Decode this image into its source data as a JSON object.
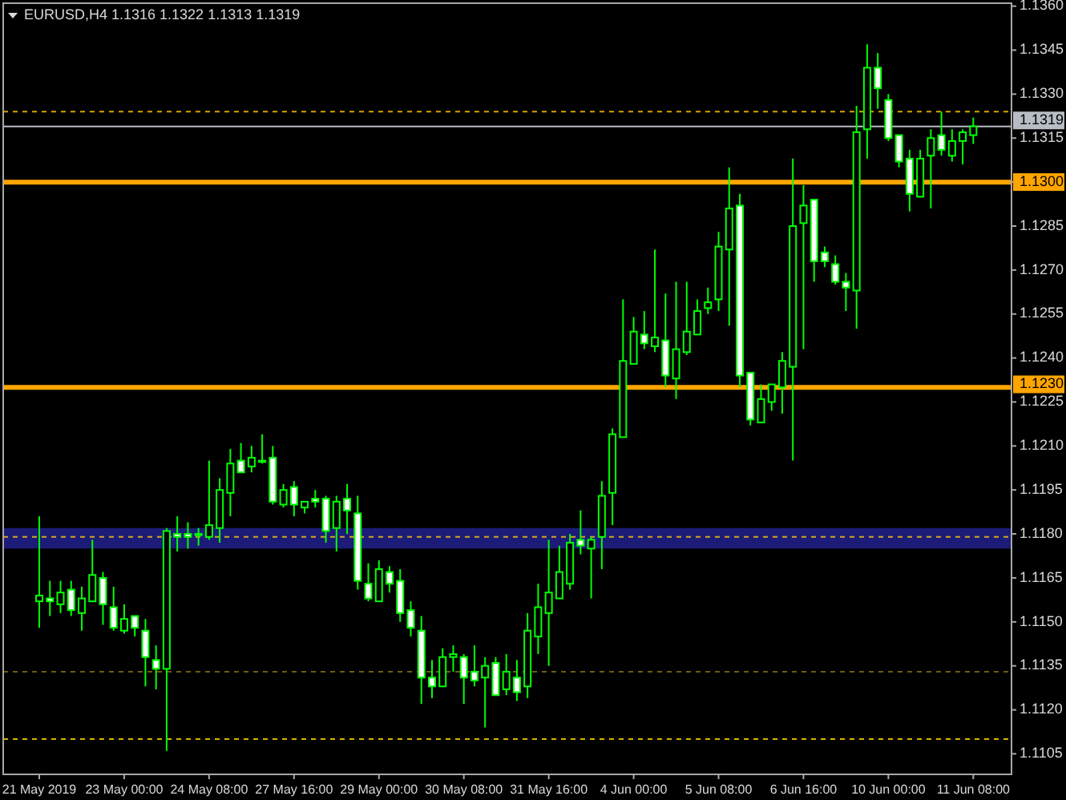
{
  "chart_data": {
    "type": "candlestick",
    "title": "EURUSD,H4 1.1316 1.1322 1.1313 1.1319",
    "categories": [
      "21 May 2019",
      null,
      null,
      null,
      null,
      null,
      null,
      null,
      "23 May 00:00",
      null,
      null,
      null,
      null,
      null,
      null,
      null,
      "24 May 08:00",
      null,
      null,
      null,
      null,
      null,
      null,
      null,
      "27 May 16:00",
      null,
      null,
      null,
      null,
      null,
      null,
      null,
      "29 May 00:00",
      null,
      null,
      null,
      null,
      null,
      null,
      null,
      "30 May 08:00",
      null,
      null,
      null,
      null,
      null,
      null,
      null,
      "31 May 16:00",
      null,
      null,
      null,
      null,
      null,
      null,
      null,
      "4 Jun 00:00",
      null,
      null,
      null,
      null,
      null,
      null,
      null,
      "5 Jun 08:00",
      null,
      null,
      null,
      null,
      null,
      null,
      null,
      "6 Jun 16:00",
      null,
      null,
      null,
      null,
      null,
      null,
      null,
      "10 Jun 00:00",
      null,
      null,
      null,
      null,
      null,
      null,
      null,
      "11 Jun 08:00"
    ],
    "ohlc": [
      [
        1.1157,
        1.1186,
        1.1148,
        1.1159
      ],
      [
        1.1158,
        1.1164,
        1.1152,
        1.1157
      ],
      [
        1.1156,
        1.1164,
        1.1153,
        1.116
      ],
      [
        1.1161,
        1.1164,
        1.1152,
        1.1154
      ],
      [
        1.1153,
        1.1162,
        1.1147,
        1.1158
      ],
      [
        1.1157,
        1.1178,
        1.1157,
        1.1166
      ],
      [
        1.1165,
        1.1167,
        1.1149,
        1.1156
      ],
      [
        1.1155,
        1.1162,
        1.1147,
        1.1148
      ],
      [
        1.1147,
        1.1156,
        1.1146,
        1.1151
      ],
      [
        1.1152,
        1.1152,
        1.1145,
        1.1148
      ],
      [
        1.1147,
        1.1151,
        1.1128,
        1.1138
      ],
      [
        1.1137,
        1.1142,
        1.1127,
        1.1134
      ],
      [
        1.1134,
        1.1182,
        1.1106,
        1.1181
      ],
      [
        1.118,
        1.1186,
        1.1174,
        1.1179
      ],
      [
        1.118,
        1.1184,
        1.1175,
        1.1179
      ],
      [
        1.118,
        1.1182,
        1.1176,
        1.118
      ],
      [
        1.1179,
        1.1205,
        1.1178,
        1.1183
      ],
      [
        1.1182,
        1.1199,
        1.1177,
        1.1195
      ],
      [
        1.1194,
        1.1209,
        1.1186,
        1.1204
      ],
      [
        1.1205,
        1.1211,
        1.1201,
        1.1201
      ],
      [
        1.1203,
        1.121,
        1.1201,
        1.1206
      ],
      [
        1.1205,
        1.1214,
        1.1204,
        1.1205
      ],
      [
        1.1206,
        1.121,
        1.119,
        1.1191
      ],
      [
        1.119,
        1.1197,
        1.1189,
        1.1195
      ],
      [
        1.1196,
        1.1198,
        1.1186,
        1.119
      ],
      [
        1.1189,
        1.1191,
        1.1187,
        1.1191
      ],
      [
        1.1192,
        1.1195,
        1.1189,
        1.1191
      ],
      [
        1.1192,
        1.1193,
        1.1177,
        1.1181
      ],
      [
        1.1182,
        1.1193,
        1.1174,
        1.1191
      ],
      [
        1.1192,
        1.1197,
        1.118,
        1.1188
      ],
      [
        1.1187,
        1.1193,
        1.1161,
        1.1164
      ],
      [
        1.1163,
        1.117,
        1.1157,
        1.1158
      ],
      [
        1.1157,
        1.1171,
        1.1157,
        1.1168
      ],
      [
        1.1167,
        1.1169,
        1.116,
        1.1163
      ],
      [
        1.1164,
        1.1168,
        1.115,
        1.1153
      ],
      [
        1.1154,
        1.1157,
        1.1145,
        1.1148
      ],
      [
        1.1147,
        1.1152,
        1.1122,
        1.1131
      ],
      [
        1.1131,
        1.1137,
        1.1124,
        1.1128
      ],
      [
        1.1128,
        1.1141,
        1.1128,
        1.1138
      ],
      [
        1.1138,
        1.1142,
        1.1133,
        1.1139
      ],
      [
        1.1138,
        1.1139,
        1.1122,
        1.1131
      ],
      [
        1.1133,
        1.1142,
        1.1128,
        1.113
      ],
      [
        1.1131,
        1.1138,
        1.1114,
        1.1135
      ],
      [
        1.1136,
        1.1138,
        1.1125,
        1.1125
      ],
      [
        1.1127,
        1.1139,
        1.1125,
        1.1133
      ],
      [
        1.1131,
        1.1137,
        1.1123,
        1.1126
      ],
      [
        1.1128,
        1.1153,
        1.1124,
        1.1147
      ],
      [
        1.1145,
        1.1163,
        1.1139,
        1.1155
      ],
      [
        1.1153,
        1.1178,
        1.1135,
        1.116
      ],
      [
        1.1158,
        1.1176,
        1.1158,
        1.1167
      ],
      [
        1.1163,
        1.118,
        1.1161,
        1.1177
      ],
      [
        1.1178,
        1.1188,
        1.1173,
        1.1176
      ],
      [
        1.1175,
        1.1179,
        1.1158,
        1.1178
      ],
      [
        1.1179,
        1.1198,
        1.1168,
        1.1193
      ],
      [
        1.1194,
        1.1216,
        1.1183,
        1.1214
      ],
      [
        1.1213,
        1.126,
        1.1213,
        1.1239
      ],
      [
        1.1238,
        1.1254,
        1.1238,
        1.1249
      ],
      [
        1.1248,
        1.1256,
        1.1243,
        1.1245
      ],
      [
        1.1244,
        1.1277,
        1.1242,
        1.1247
      ],
      [
        1.1246,
        1.1262,
        1.123,
        1.1234
      ],
      [
        1.1233,
        1.1266,
        1.1226,
        1.1243
      ],
      [
        1.1242,
        1.1266,
        1.1241,
        1.1249
      ],
      [
        1.1248,
        1.126,
        1.1248,
        1.1256
      ],
      [
        1.1257,
        1.1264,
        1.1255,
        1.1259
      ],
      [
        1.126,
        1.1283,
        1.1256,
        1.1278
      ],
      [
        1.1277,
        1.1305,
        1.1251,
        1.1291
      ],
      [
        1.1292,
        1.1296,
        1.123,
        1.1234
      ],
      [
        1.1235,
        1.1235,
        1.1217,
        1.1219
      ],
      [
        1.1218,
        1.1231,
        1.1218,
        1.1226
      ],
      [
        1.1225,
        1.1231,
        1.1222,
        1.1231
      ],
      [
        1.123,
        1.1242,
        1.1221,
        1.1239
      ],
      [
        1.1237,
        1.1308,
        1.1205,
        1.1285
      ],
      [
        1.1286,
        1.1299,
        1.1243,
        1.1292
      ],
      [
        1.1294,
        1.1294,
        1.1266,
        1.1273
      ],
      [
        1.1276,
        1.1278,
        1.1271,
        1.1273
      ],
      [
        1.1272,
        1.1275,
        1.1265,
        1.1266
      ],
      [
        1.1266,
        1.1269,
        1.1256,
        1.1264
      ],
      [
        1.1263,
        1.1326,
        1.125,
        1.1317
      ],
      [
        1.1318,
        1.1347,
        1.1308,
        1.1339
      ],
      [
        1.1339,
        1.1344,
        1.1325,
        1.1332
      ],
      [
        1.1328,
        1.133,
        1.1314,
        1.1315
      ],
      [
        1.1316,
        1.1316,
        1.1305,
        1.1307
      ],
      [
        1.1308,
        1.1311,
        1.129,
        1.1296
      ],
      [
        1.1295,
        1.1311,
        1.1295,
        1.1308
      ],
      [
        1.1309,
        1.1318,
        1.1291,
        1.1315
      ],
      [
        1.1316,
        1.1324,
        1.1309,
        1.1311
      ],
      [
        1.1309,
        1.1318,
        1.1307,
        1.1314
      ],
      [
        1.1314,
        1.1318,
        1.1306,
        1.1317
      ],
      [
        1.1316,
        1.1322,
        1.1313,
        1.1319
      ]
    ],
    "color": "#00ff00",
    "colors": [
      "#000000",
      "#ffffff",
      "#000000",
      "#ffffff",
      "#000000",
      "#000000",
      "#ffffff",
      "#ffffff",
      "#000000",
      "#ffffff",
      "#ffffff",
      "#ffffff",
      "#000000",
      "#ffffff",
      "#ffffff",
      "#000000",
      "#000000",
      "#000000",
      "#000000",
      "#ffffff",
      "#000000",
      "#000000",
      "#ffffff",
      "#000000",
      "#ffffff",
      "#000000",
      "#ffffff",
      "#ffffff",
      "#000000",
      "#ffffff",
      "#ffffff",
      "#ffffff",
      "#000000",
      "#ffffff",
      "#ffffff",
      "#ffffff",
      "#ffffff",
      "#ffffff",
      "#000000",
      "#000000",
      "#ffffff",
      "#ffffff",
      "#000000",
      "#ffffff",
      "#000000",
      "#ffffff",
      "#000000",
      "#000000",
      "#000000",
      "#000000",
      "#000000",
      "#ffffff",
      "#000000",
      "#000000",
      "#000000",
      "#000000",
      "#000000",
      "#ffffff",
      "#000000",
      "#ffffff",
      "#000000",
      "#000000",
      "#000000",
      "#000000",
      "#000000",
      "#000000",
      "#ffffff",
      "#ffffff",
      "#000000",
      "#000000",
      "#000000",
      "#000000",
      "#000000",
      "#ffffff",
      "#ffffff",
      "#ffffff",
      "#ffffff",
      "#000000",
      "#000000",
      "#ffffff",
      "#ffffff",
      "#ffffff",
      "#ffffff",
      "#000000",
      "#000000",
      "#ffffff",
      "#000000",
      "#000000",
      "#000000"
    ],
    "ylim": [
      1.1098,
      1.1361
    ],
    "yticks": [
      1.1105,
      {
        "value": 1.112,
        "label": "1.1120"
      },
      1.1135,
      {
        "value": 1.115,
        "label": "1.1150"
      },
      1.1165,
      {
        "value": 1.118,
        "label": "1.1180"
      },
      1.1195,
      {
        "value": 1.121,
        "label": "1.1210"
      },
      1.1225,
      {
        "value": 1.124,
        "label": "1.1240"
      },
      1.1255,
      {
        "value": 1.127,
        "label": "1.1270"
      },
      1.1285,
      {
        "value": 1.13,
        "label": null
      },
      1.1315,
      {
        "value": 1.133,
        "label": "1.1330"
      },
      1.1345,
      {
        "value": 1.136,
        "label": "1.1360"
      }
    ],
    "bands": [
      {
        "axis": "y",
        "from": 1.1175,
        "to": 1.1182,
        "color": "#1c1c78"
      }
    ],
    "ref_lines": [
      {
        "axis": "y",
        "value": 1.13,
        "label": "1.1300",
        "color": "#ffa500",
        "line_style": "solid"
      },
      {
        "axis": "y",
        "value": 1.123,
        "label": "1.1230",
        "color": "#ffa500",
        "line_style": "solid"
      },
      {
        "axis": "y",
        "value": 1.1319,
        "label": "1.1319",
        "color": "#b8bcc4",
        "line_style": "solid"
      },
      {
        "axis": "y",
        "value": 1.1324,
        "color": "#d9a400",
        "line_style": "dashed"
      },
      {
        "axis": "y",
        "value": 1.1179,
        "color": "#d4a520",
        "line_style": "dashed"
      },
      {
        "axis": "y",
        "value": 1.1133,
        "color": "#6e5c12",
        "line_style": "dashed"
      },
      {
        "axis": "y",
        "value": 1.111,
        "color": "#d8b400",
        "line_style": "dashed"
      }
    ]
  }
}
